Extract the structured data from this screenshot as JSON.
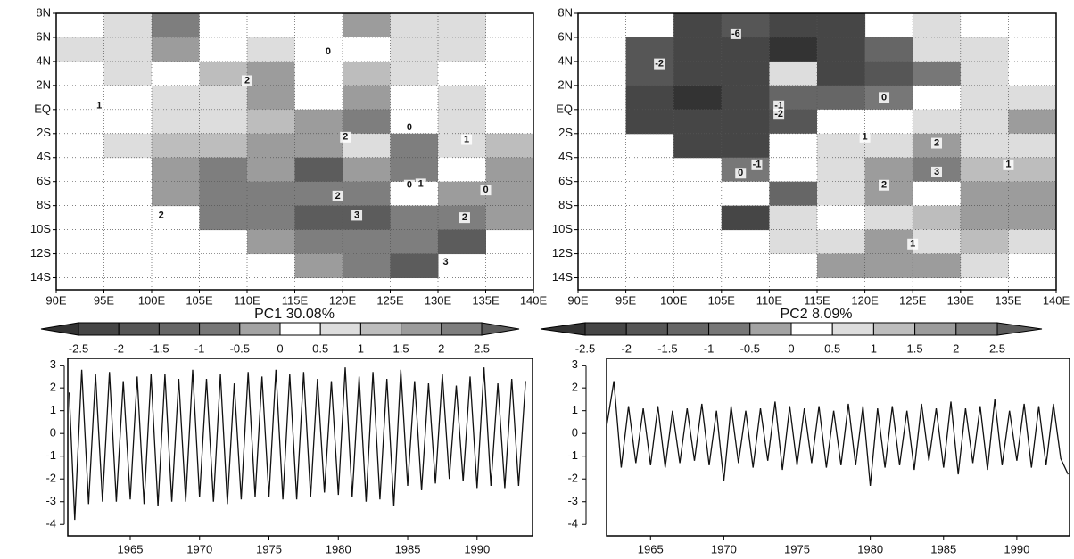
{
  "chart_data": [
    {
      "type": "contour",
      "title": "PC1 30.08%",
      "xlim": [
        90,
        140
      ],
      "ylim": [
        -15,
        8
      ],
      "xticks": [
        {
          "value": 90,
          "label": "90E"
        },
        {
          "value": 95,
          "label": "95E"
        },
        {
          "value": 100,
          "label": "100E"
        },
        {
          "value": 105,
          "label": "105E"
        },
        {
          "value": 110,
          "label": "110E"
        },
        {
          "value": 115,
          "label": "115E"
        },
        {
          "value": 120,
          "label": "120E"
        },
        {
          "value": 125,
          "label": "125E"
        },
        {
          "value": 130,
          "label": "130E"
        },
        {
          "value": 135,
          "label": "135E"
        },
        {
          "value": 140,
          "label": "140E"
        }
      ],
      "yticks": [
        {
          "value": 8,
          "label": "8N"
        },
        {
          "value": 6,
          "label": "6N"
        },
        {
          "value": 4,
          "label": "4N"
        },
        {
          "value": 2,
          "label": "2N"
        },
        {
          "value": 0,
          "label": "EQ"
        },
        {
          "value": -2,
          "label": "2S"
        },
        {
          "value": -4,
          "label": "4S"
        },
        {
          "value": -6,
          "label": "6S"
        },
        {
          "value": -8,
          "label": "8S"
        },
        {
          "value": -10,
          "label": "10S"
        },
        {
          "value": -12,
          "label": "12S"
        },
        {
          "value": -14,
          "label": "14S"
        }
      ],
      "grid": true,
      "lon": [
        92.5,
        97.5,
        102.5,
        107.5,
        112.5,
        117.5,
        122.5,
        127.5,
        132.5,
        137.5
      ],
      "lat": [
        7,
        5,
        3,
        1,
        -1,
        -3,
        -5,
        -7,
        -9,
        -11,
        -13
      ],
      "field": [
        [
          null,
          0.7,
          2.2,
          0.3,
          0.2,
          null,
          1.6,
          0.8,
          0.6,
          null
        ],
        [
          0.6,
          0.8,
          1.8,
          0.4,
          0.5,
          0.2,
          0.2,
          0.7,
          0.6,
          0.3
        ],
        [
          null,
          0.6,
          0.2,
          1.2,
          1.7,
          0.3,
          1.2,
          0.6,
          0.4,
          0.2
        ],
        [
          null,
          0.3,
          0.6,
          0.8,
          1.8,
          0.4,
          1.8,
          0.2,
          0.5,
          0.3
        ],
        [
          null,
          0.4,
          0.8,
          0.6,
          1.2,
          1.6,
          2.2,
          0.3,
          0.7,
          0.2
        ],
        [
          null,
          0.5,
          1.2,
          1.4,
          1.5,
          1.8,
          0.6,
          2.4,
          0.8,
          1.2
        ],
        [
          null,
          null,
          1.6,
          2.0,
          1.9,
          2.6,
          1.5,
          2.2,
          0.2,
          1.8
        ],
        [
          null,
          null,
          1.7,
          2.2,
          2.3,
          2.1,
          2.4,
          0.4,
          1.5,
          1.7
        ],
        [
          null,
          null,
          null,
          2.1,
          2.3,
          2.5,
          2.8,
          2.3,
          2.2,
          1.8
        ],
        [
          null,
          null,
          null,
          null,
          1.9,
          2.1,
          2.2,
          2.4,
          2.6,
          null
        ],
        [
          null,
          null,
          null,
          null,
          null,
          1.8,
          2.0,
          2.7,
          null,
          null
        ]
      ],
      "contour_labels": [
        {
          "label": "0",
          "lon": 118.5,
          "lat": 4.8
        },
        {
          "label": "2",
          "lon": 110,
          "lat": 2.4
        },
        {
          "label": "1",
          "lon": 94.5,
          "lat": 0.3
        },
        {
          "label": "2",
          "lon": 120.3,
          "lat": -2.3
        },
        {
          "label": "0",
          "lon": 127,
          "lat": -1.5
        },
        {
          "label": "1",
          "lon": 133,
          "lat": -2.5
        },
        {
          "label": "1",
          "lon": 128.2,
          "lat": -6.2
        },
        {
          "label": "0",
          "lon": 127,
          "lat": -6.3
        },
        {
          "label": "2",
          "lon": 119.5,
          "lat": -7.2
        },
        {
          "label": "3",
          "lon": 121.5,
          "lat": -8.8
        },
        {
          "label": "2",
          "lon": 101,
          "lat": -8.8
        },
        {
          "label": "2",
          "lon": 132.8,
          "lat": -9
        },
        {
          "label": "0",
          "lon": 135,
          "lat": -6.7
        },
        {
          "label": "3",
          "lon": 130.8,
          "lat": -12.7
        }
      ],
      "colorbar": {
        "levels": [
          -2.5,
          -2,
          -1.5,
          -1,
          -0.5,
          0,
          0.5,
          1,
          1.5,
          2,
          2.5
        ],
        "colors": [
          "#333333",
          "#464646",
          "#565656",
          "#666666",
          "#777777",
          "#a3a3a3",
          "#ffffff",
          "#dddddd",
          "#bdbdbd",
          "#9c9c9c",
          "#7e7e7e",
          "#5c5c5c"
        ]
      }
    },
    {
      "type": "line",
      "color": "#111111",
      "xlim": [
        1960.5,
        1994
      ],
      "ylim": [
        -4.5,
        3.3
      ],
      "xticks": [
        1965,
        1970,
        1975,
        1980,
        1985,
        1990
      ],
      "yticks": [
        3,
        2,
        1,
        0,
        -1,
        -2,
        -3,
        -4
      ],
      "x": [
        1960.6,
        1961,
        1961.5,
        1962,
        1962.5,
        1963,
        1963.5,
        1964,
        1964.5,
        1965,
        1965.5,
        1966,
        1966.5,
        1967,
        1967.5,
        1968,
        1968.5,
        1969,
        1969.5,
        1970,
        1970.5,
        1971,
        1971.5,
        1972,
        1972.5,
        1973,
        1973.5,
        1974,
        1974.5,
        1975,
        1975.5,
        1976,
        1976.5,
        1977,
        1977.5,
        1978,
        1978.5,
        1979,
        1979.5,
        1980,
        1980.5,
        1981,
        1981.5,
        1982,
        1982.5,
        1983,
        1983.5,
        1984,
        1984.5,
        1985,
        1985.5,
        1986,
        1986.5,
        1987,
        1987.5,
        1988,
        1988.5,
        1989,
        1989.5,
        1990,
        1990.5,
        1991,
        1991.5,
        1992,
        1992.5,
        1993,
        1993.5
      ],
      "values": [
        1.8,
        -3.8,
        2.8,
        -3.1,
        2.6,
        -3.0,
        2.7,
        -3.0,
        2.3,
        -2.9,
        2.5,
        -3.1,
        2.6,
        -3.2,
        2.6,
        -3.0,
        2.4,
        -3.0,
        2.8,
        -2.8,
        2.4,
        -3.0,
        2.6,
        -3.1,
        2.2,
        -2.9,
        2.7,
        -2.8,
        2.5,
        -2.8,
        2.8,
        -2.9,
        2.6,
        -2.9,
        2.7,
        -2.8,
        2.4,
        -2.6,
        2.3,
        -2.7,
        2.9,
        -2.8,
        2.5,
        -3.0,
        2.7,
        -2.9,
        2.4,
        -3.2,
        2.8,
        -2.3,
        2.3,
        -2.5,
        2.2,
        -2.2,
        2.6,
        -2.0,
        2.1,
        -2.1,
        2.5,
        -2.4,
        2.9,
        -2.3,
        2.2,
        -2.4,
        2.4,
        -2.3,
        2.3
      ]
    },
    {
      "type": "contour",
      "title": "PC2 8.09%",
      "xlim": [
        90,
        140
      ],
      "ylim": [
        -15,
        8
      ],
      "xticks": [
        {
          "value": 90,
          "label": "90E"
        },
        {
          "value": 95,
          "label": "95E"
        },
        {
          "value": 100,
          "label": "100E"
        },
        {
          "value": 105,
          "label": "105E"
        },
        {
          "value": 110,
          "label": "110E"
        },
        {
          "value": 115,
          "label": "115E"
        },
        {
          "value": 120,
          "label": "120E"
        },
        {
          "value": 125,
          "label": "125E"
        },
        {
          "value": 130,
          "label": "130E"
        },
        {
          "value": 135,
          "label": "135E"
        },
        {
          "value": 140,
          "label": "140E"
        }
      ],
      "yticks": [
        {
          "value": 8,
          "label": "8N"
        },
        {
          "value": 6,
          "label": "6N"
        },
        {
          "value": 4,
          "label": "4N"
        },
        {
          "value": 2,
          "label": "2N"
        },
        {
          "value": 0,
          "label": "EQ"
        },
        {
          "value": -2,
          "label": "2S"
        },
        {
          "value": -4,
          "label": "4S"
        },
        {
          "value": -6,
          "label": "6S"
        },
        {
          "value": -8,
          "label": "8S"
        },
        {
          "value": -10,
          "label": "10S"
        },
        {
          "value": -12,
          "label": "12S"
        },
        {
          "value": -14,
          "label": "14S"
        }
      ],
      "grid": true,
      "lon": [
        92.5,
        97.5,
        102.5,
        107.5,
        112.5,
        117.5,
        122.5,
        127.5,
        132.5,
        137.5
      ],
      "lat": [
        7,
        5,
        3,
        1,
        -1,
        -3,
        -5,
        -7,
        -9,
        -11,
        -13
      ],
      "field": [
        [
          null,
          null,
          -2.2,
          -2.0,
          -2.1,
          -2.3,
          null,
          0.6,
          0.3,
          null
        ],
        [
          null,
          -1.8,
          -2.3,
          -2.4,
          -2.6,
          -2.2,
          -1.5,
          0.5,
          0.7,
          0.4
        ],
        [
          null,
          -2.0,
          -2.4,
          -2.2,
          0.6,
          -2.1,
          -1.6,
          -0.7,
          0.6,
          0.3
        ],
        [
          null,
          -2.1,
          -2.6,
          -2.3,
          -1.5,
          -1.4,
          -0.6,
          0.2,
          0.5,
          0.8
        ],
        [
          null,
          -2.2,
          -2.5,
          -2.4,
          -1.6,
          0.3,
          0.2,
          0.8,
          0.6,
          1.6
        ],
        [
          null,
          null,
          -2.3,
          -2.2,
          0.3,
          0.6,
          0.7,
          1.6,
          0.9,
          0.6
        ],
        [
          null,
          null,
          null,
          -0.8,
          0.4,
          0.7,
          1.5,
          2.2,
          1.4,
          1.2
        ],
        [
          null,
          null,
          null,
          0.2,
          -1.4,
          0.6,
          1.6,
          0.3,
          1.8,
          1.5
        ],
        [
          null,
          null,
          null,
          -2.4,
          0.5,
          0.4,
          0.6,
          1.3,
          1.5,
          1.7
        ],
        [
          null,
          null,
          null,
          null,
          0.8,
          0.5,
          1.6,
          0.7,
          1.2,
          0.9
        ],
        [
          null,
          null,
          null,
          null,
          null,
          1.7,
          1.9,
          1.6,
          0.8,
          null
        ]
      ],
      "contour_labels": [
        {
          "label": "-6",
          "lon": 106.5,
          "lat": 6.3
        },
        {
          "label": "-2",
          "lon": 98.5,
          "lat": 3.8
        },
        {
          "label": "-1",
          "lon": 111,
          "lat": 0.3
        },
        {
          "label": "-2",
          "lon": 111,
          "lat": -0.4
        },
        {
          "label": "0",
          "lon": 122,
          "lat": 1
        },
        {
          "label": "1",
          "lon": 120,
          "lat": -2.3
        },
        {
          "label": "0",
          "lon": 107,
          "lat": -5.3
        },
        {
          "label": "-1",
          "lon": 108.7,
          "lat": -4.6
        },
        {
          "label": "2",
          "lon": 127.5,
          "lat": -2.8
        },
        {
          "label": "2",
          "lon": 122,
          "lat": -6.3
        },
        {
          "label": "3",
          "lon": 127.5,
          "lat": -5.2
        },
        {
          "label": "1",
          "lon": 135,
          "lat": -4.6
        },
        {
          "label": "1",
          "lon": 125,
          "lat": -11.2
        }
      ],
      "colorbar": {
        "levels": [
          -2.5,
          -2,
          -1.5,
          -1,
          -0.5,
          0,
          0.5,
          1,
          1.5,
          2,
          2.5
        ],
        "colors": [
          "#333333",
          "#464646",
          "#565656",
          "#666666",
          "#777777",
          "#a3a3a3",
          "#ffffff",
          "#dddddd",
          "#bdbdbd",
          "#9c9c9c",
          "#7e7e7e",
          "#5c5c5c"
        ]
      }
    },
    {
      "type": "line",
      "color": "#111111",
      "xlim": [
        1962,
        1993.6
      ],
      "ylim": [
        -4.5,
        3.3
      ],
      "xticks": [
        1965,
        1970,
        1975,
        1980,
        1985,
        1990
      ],
      "yticks": [
        3,
        2,
        1,
        0,
        -1,
        -2,
        -3,
        -4
      ],
      "x": [
        1962,
        1962.5,
        1963,
        1963.5,
        1964,
        1964.5,
        1965,
        1965.5,
        1966,
        1966.5,
        1967,
        1967.5,
        1968,
        1968.5,
        1969,
        1969.5,
        1970,
        1970.5,
        1971,
        1971.5,
        1972,
        1972.5,
        1973,
        1973.5,
        1974,
        1974.5,
        1975,
        1975.5,
        1976,
        1976.5,
        1977,
        1977.5,
        1978,
        1978.5,
        1979,
        1979.5,
        1980,
        1980.5,
        1981,
        1981.5,
        1982,
        1982.5,
        1983,
        1983.5,
        1984,
        1984.5,
        1985,
        1985.5,
        1986,
        1986.5,
        1987,
        1987.5,
        1988,
        1988.5,
        1989,
        1989.5,
        1990,
        1990.5,
        1991,
        1991.5,
        1992,
        1992.5,
        1993,
        1993.5
      ],
      "values": [
        0.3,
        2.3,
        -1.5,
        1.2,
        -1.3,
        1.1,
        -1.4,
        1.2,
        -1.5,
        1.0,
        -1.3,
        1.1,
        -1.2,
        1.3,
        -1.4,
        1.0,
        -2.1,
        1.2,
        -1.3,
        1.0,
        -1.5,
        1.1,
        -1.2,
        1.4,
        -1.6,
        1.2,
        -1.4,
        1.1,
        -1.3,
        1.2,
        -1.5,
        1.0,
        -1.4,
        1.3,
        -1.4,
        1.2,
        -2.3,
        1.1,
        -1.5,
        1.2,
        -1.4,
        1.0,
        -1.6,
        1.3,
        -1.2,
        1.1,
        -1.5,
        1.4,
        -1.8,
        1.1,
        -1.3,
        1.2,
        -1.6,
        1.5,
        -1.4,
        1.0,
        -1.2,
        1.3,
        -1.5,
        1.2,
        -1.4,
        1.3,
        -1.1,
        -1.8
      ]
    }
  ]
}
